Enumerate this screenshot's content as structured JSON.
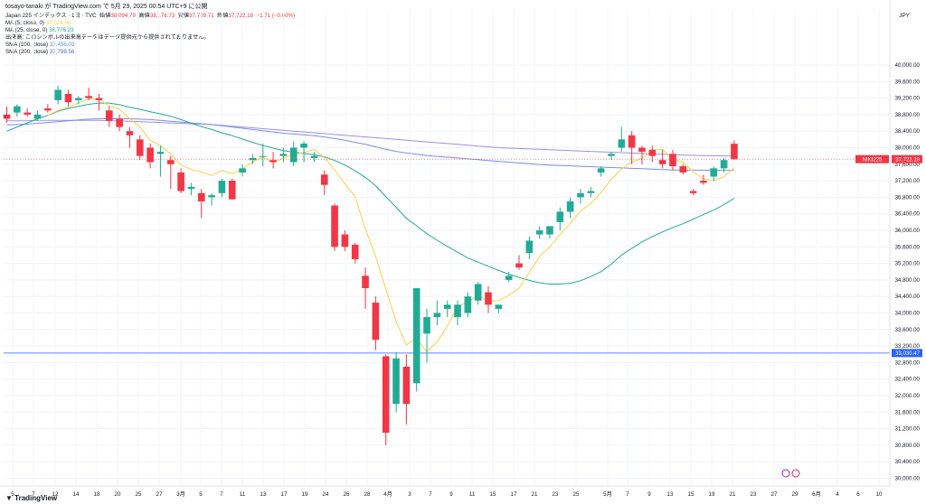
{
  "header": {
    "published": "tosayo-tanaki が TradingView.com で 5月 29, 2025 00:54 UTC+9 に公開",
    "currency": "JPY"
  },
  "legend": {
    "symbol_line": "Japan 225 インデックス · 1日 · TVC",
    "open_label": "始値",
    "open_value": "38,094.79",
    "high_label": "高値",
    "high_value": "38,178.73",
    "low_label": "安値",
    "low_value": "37,709.71",
    "close_label": "終値",
    "close_value": "37,722.18",
    "change": "−1.71 (−0.00%)",
    "ma5_label": "MA (5, close, 0)",
    "ma5_value": "37,524.06",
    "ma25_label": "MA (25, close, 0)",
    "ma25_value": "36,776.23",
    "volume_note": "出来高: このシンボルの出来高データはデータ提供元から提供されておりません。",
    "sma100_label": "SMA (100, close)",
    "sma100_value": "37,456.03",
    "sma200_label": "SMA (200, close)",
    "sma200_value": "37,798.56"
  },
  "price_badges": {
    "symbol_tag": "NIKI225",
    "last_price": "37,722.18",
    "hline_price": "33,030.47"
  },
  "colors": {
    "up": "#22ab94",
    "down": "#f23645",
    "ma5": "#f7d34a",
    "ma25": "#22ab94",
    "sma100": "#7b8ef0",
    "sma200": "#a08fe0",
    "hline": "#2962ff"
  },
  "footer": {
    "logo": "TradingView"
  },
  "chart_data": {
    "type": "candlestick",
    "ylim": [
      30000,
      40400
    ],
    "y_ticks": [
      30000,
      30400,
      30800,
      31200,
      31600,
      32000,
      32400,
      32800,
      33200,
      33600,
      34000,
      34400,
      34800,
      35200,
      35600,
      36000,
      36400,
      36800,
      37200,
      37600,
      38000,
      38400,
      38800,
      39200,
      39600,
      40000
    ],
    "y_tick_labels": [
      "30,000.00",
      "30,400.00",
      "30,800.00",
      "31,200.00",
      "31,600.00",
      "32,000.00",
      "32,400.00",
      "32,800.00",
      "33,200.00",
      "33,600.00",
      "34,000.00",
      "34,400.00",
      "34,800.00",
      "35,200.00",
      "35,600.00",
      "36,000.00",
      "36,400.00",
      "36,800.00",
      "37,200.00",
      "37,600.00",
      "38,000.00",
      "38,400.00",
      "38,800.00",
      "39,200.00",
      "39,600.00",
      "40,000.00"
    ],
    "x_labels": [
      "5",
      "7",
      "12",
      "14",
      "18",
      "20",
      "25",
      "27",
      "3月",
      "5",
      "7",
      "11",
      "13",
      "17",
      "19",
      "24",
      "26",
      "28",
      "4月",
      "3",
      "7",
      "9",
      "11",
      "15",
      "17",
      "21",
      "23",
      "25",
      "5月",
      "7",
      "9",
      "13",
      "15",
      "19",
      "21",
      "23",
      "27",
      "29",
      "6月",
      "4",
      "6",
      "10"
    ],
    "hline": 33030.47,
    "candles": [
      {
        "o": 38800,
        "h": 39000,
        "l": 38600,
        "c": 38700
      },
      {
        "o": 38850,
        "h": 39050,
        "l": 38750,
        "c": 39000
      },
      {
        "o": 38850,
        "h": 38950,
        "l": 38750,
        "c": 38800
      },
      {
        "o": 38700,
        "h": 38900,
        "l": 38650,
        "c": 38800
      },
      {
        "o": 38950,
        "h": 39050,
        "l": 38850,
        "c": 38900
      },
      {
        "o": 39150,
        "h": 39500,
        "l": 39050,
        "c": 39400
      },
      {
        "o": 39300,
        "h": 39400,
        "l": 39000,
        "c": 39100
      },
      {
        "o": 39150,
        "h": 39250,
        "l": 39050,
        "c": 39200
      },
      {
        "o": 39250,
        "h": 39450,
        "l": 39150,
        "c": 39200
      },
      {
        "o": 39200,
        "h": 39300,
        "l": 38900,
        "c": 39150
      },
      {
        "o": 38900,
        "h": 39000,
        "l": 38500,
        "c": 38650
      },
      {
        "o": 38700,
        "h": 38800,
        "l": 38400,
        "c": 38500
      },
      {
        "o": 38400,
        "h": 38500,
        "l": 38000,
        "c": 38300
      },
      {
        "o": 38200,
        "h": 38300,
        "l": 37700,
        "c": 37800
      },
      {
        "o": 38000,
        "h": 38100,
        "l": 37500,
        "c": 37650
      },
      {
        "o": 37850,
        "h": 38050,
        "l": 37300,
        "c": 37900
      },
      {
        "o": 37700,
        "h": 37800,
        "l": 37000,
        "c": 37600
      },
      {
        "o": 37400,
        "h": 37500,
        "l": 36900,
        "c": 36950
      },
      {
        "o": 37000,
        "h": 37150,
        "l": 36850,
        "c": 37050
      },
      {
        "o": 36900,
        "h": 37000,
        "l": 36300,
        "c": 36700
      },
      {
        "o": 36800,
        "h": 36900,
        "l": 36600,
        "c": 36850
      },
      {
        "o": 36900,
        "h": 37250,
        "l": 36800,
        "c": 37200
      },
      {
        "o": 37200,
        "h": 37250,
        "l": 36800,
        "c": 36750
      },
      {
        "o": 37400,
        "h": 37600,
        "l": 37300,
        "c": 37500
      },
      {
        "o": 37700,
        "h": 37850,
        "l": 37600,
        "c": 37750
      },
      {
        "o": 37800,
        "h": 38100,
        "l": 37550,
        "c": 37800
      },
      {
        "o": 37700,
        "h": 37900,
        "l": 37500,
        "c": 37650
      },
      {
        "o": 37800,
        "h": 38000,
        "l": 37650,
        "c": 37850
      },
      {
        "o": 37650,
        "h": 38150,
        "l": 37550,
        "c": 38000
      },
      {
        "o": 38000,
        "h": 38150,
        "l": 37650,
        "c": 38100
      },
      {
        "o": 37750,
        "h": 37900,
        "l": 37650,
        "c": 37800
      },
      {
        "o": 37350,
        "h": 37450,
        "l": 36850,
        "c": 37100
      },
      {
        "o": 36600,
        "h": 36650,
        "l": 35500,
        "c": 35600
      },
      {
        "o": 35900,
        "h": 36000,
        "l": 35500,
        "c": 35600
      },
      {
        "o": 35650,
        "h": 35700,
        "l": 35200,
        "c": 35300
      },
      {
        "o": 34900,
        "h": 35100,
        "l": 34100,
        "c": 34600
      },
      {
        "o": 34250,
        "h": 34400,
        "l": 33100,
        "c": 33350
      },
      {
        "o": 32950,
        "h": 33000,
        "l": 30800,
        "c": 31100
      },
      {
        "o": 31800,
        "h": 33050,
        "l": 31600,
        "c": 32900
      },
      {
        "o": 32700,
        "h": 33000,
        "l": 31300,
        "c": 31800
      },
      {
        "o": 32300,
        "h": 34600,
        "l": 32100,
        "c": 34600
      },
      {
        "o": 33500,
        "h": 34100,
        "l": 32800,
        "c": 33900
      },
      {
        "o": 33900,
        "h": 34300,
        "l": 33700,
        "c": 34000
      },
      {
        "o": 34100,
        "h": 34300,
        "l": 33900,
        "c": 34200
      },
      {
        "o": 33900,
        "h": 34300,
        "l": 33700,
        "c": 34200
      },
      {
        "o": 34000,
        "h": 34500,
        "l": 33900,
        "c": 34400
      },
      {
        "o": 34300,
        "h": 34750,
        "l": 34200,
        "c": 34700
      },
      {
        "o": 34500,
        "h": 34650,
        "l": 34000,
        "c": 34200
      },
      {
        "o": 34100,
        "h": 34200,
        "l": 34000,
        "c": 34200
      },
      {
        "o": 34800,
        "h": 35000,
        "l": 34750,
        "c": 34900
      },
      {
        "o": 35200,
        "h": 35400,
        "l": 35050,
        "c": 35100
      },
      {
        "o": 35450,
        "h": 35850,
        "l": 35300,
        "c": 35750
      },
      {
        "o": 35900,
        "h": 36100,
        "l": 35800,
        "c": 36000
      },
      {
        "o": 35900,
        "h": 36100,
        "l": 35800,
        "c": 36100
      },
      {
        "o": 36200,
        "h": 36550,
        "l": 36000,
        "c": 36450
      },
      {
        "o": 36450,
        "h": 36800,
        "l": 36300,
        "c": 36700
      },
      {
        "o": 36800,
        "h": 37000,
        "l": 36650,
        "c": 36900
      },
      {
        "o": 36900,
        "h": 37050,
        "l": 36800,
        "c": 36950
      },
      {
        "o": 37400,
        "h": 37550,
        "l": 37300,
        "c": 37500
      },
      {
        "o": 37800,
        "h": 37900,
        "l": 37700,
        "c": 37850
      },
      {
        "o": 38000,
        "h": 38500,
        "l": 37900,
        "c": 38200
      },
      {
        "o": 38300,
        "h": 38400,
        "l": 37600,
        "c": 38000
      },
      {
        "o": 38000,
        "h": 38050,
        "l": 37600,
        "c": 37900
      },
      {
        "o": 37950,
        "h": 38050,
        "l": 37650,
        "c": 37800
      },
      {
        "o": 37700,
        "h": 37950,
        "l": 37500,
        "c": 37600
      },
      {
        "o": 37850,
        "h": 37950,
        "l": 37450,
        "c": 37550
      },
      {
        "o": 37550,
        "h": 37600,
        "l": 37350,
        "c": 37400
      },
      {
        "o": 36950,
        "h": 37000,
        "l": 36850,
        "c": 36900
      },
      {
        "o": 37200,
        "h": 37350,
        "l": 37100,
        "c": 37150
      },
      {
        "o": 37300,
        "h": 37550,
        "l": 37200,
        "c": 37500
      },
      {
        "o": 37500,
        "h": 37750,
        "l": 37400,
        "c": 37700
      },
      {
        "o": 38094.79,
        "h": 38178.73,
        "l": 37709.71,
        "c": 37722.18
      }
    ],
    "ma5": [
      null,
      null,
      null,
      null,
      38780,
      38900,
      38980,
      39080,
      39180,
      39180,
      39010,
      38930,
      38700,
      38500,
      38180,
      38050,
      37850,
      37580,
      37470,
      37410,
      37330,
      37450,
      37370,
      37480,
      37660,
      37770,
      37640,
      37740,
      37840,
      37880,
      37960,
      37760,
      37460,
      37130,
      36810,
      36030,
      35370,
      34570,
      33800,
      33230,
      33380,
      33060,
      33300,
      33680,
      34160,
      34260,
      34430,
      34280,
      34300,
      34430,
      34600,
      34980,
      35370,
      35600,
      35900,
      36160,
      36470,
      36650,
      36910,
      37240,
      37480,
      37650,
      37740,
      37940,
      37960,
      37720,
      37650,
      37410,
      37250,
      37200,
      37300,
      37520
    ],
    "ma25": [
      38400,
      38500,
      38600,
      38700,
      38780,
      38880,
      38950,
      39000,
      39050,
      39080,
      39080,
      39040,
      38980,
      38930,
      38870,
      38820,
      38760,
      38680,
      38590,
      38510,
      38440,
      38360,
      38290,
      38210,
      38130,
      38050,
      37990,
      37930,
      37890,
      37860,
      37830,
      37780,
      37690,
      37580,
      37440,
      37280,
      37080,
      36810,
      36560,
      36290,
      36110,
      35920,
      35760,
      35610,
      35470,
      35330,
      35230,
      35130,
      35030,
      34940,
      34860,
      34790,
      34730,
      34700,
      34700,
      34720,
      34780,
      34880,
      35000,
      35180,
      35400,
      35560,
      35720,
      35850,
      35960,
      36070,
      36160,
      36270,
      36380,
      36490,
      36620,
      36776
    ],
    "sma100": [
      38550,
      38560,
      38570,
      38590,
      38610,
      38630,
      38650,
      38670,
      38690,
      38700,
      38700,
      38700,
      38700,
      38690,
      38680,
      38660,
      38640,
      38620,
      38600,
      38580,
      38560,
      38530,
      38500,
      38470,
      38440,
      38410,
      38380,
      38350,
      38330,
      38310,
      38290,
      38260,
      38220,
      38180,
      38130,
      38080,
      38020,
      37960,
      37910,
      37870,
      37840,
      37810,
      37790,
      37770,
      37750,
      37730,
      37710,
      37690,
      37670,
      37650,
      37630,
      37610,
      37590,
      37580,
      37570,
      37560,
      37550,
      37540,
      37530,
      37520,
      37510,
      37500,
      37490,
      37480,
      37470,
      37460,
      37460,
      37455,
      37455,
      37456,
      37456,
      37456
    ],
    "sma200": [
      38650,
      38650,
      38650,
      38660,
      38660,
      38660,
      38660,
      38660,
      38660,
      38660,
      38650,
      38650,
      38640,
      38630,
      38620,
      38610,
      38600,
      38590,
      38580,
      38570,
      38560,
      38540,
      38520,
      38500,
      38480,
      38460,
      38440,
      38420,
      38400,
      38380,
      38360,
      38340,
      38320,
      38300,
      38280,
      38260,
      38240,
      38220,
      38200,
      38180,
      38160,
      38140,
      38120,
      38100,
      38080,
      38060,
      38040,
      38020,
      38000,
      37990,
      37980,
      37970,
      37960,
      37950,
      37940,
      37930,
      37920,
      37910,
      37900,
      37890,
      37880,
      37870,
      37860,
      37850,
      37840,
      37830,
      37820,
      37815,
      37810,
      37805,
      37800,
      37798.56
    ]
  }
}
